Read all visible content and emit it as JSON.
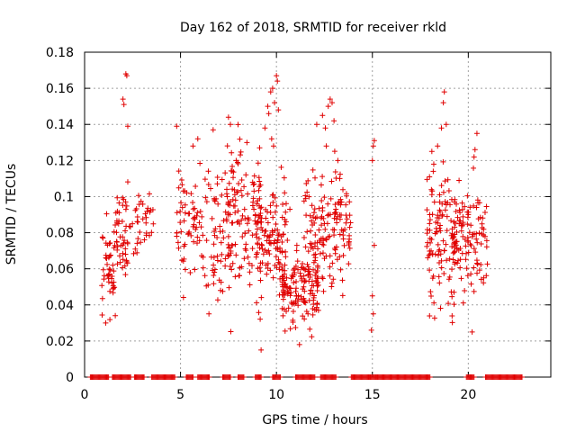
{
  "chart_data": {
    "type": "scatter",
    "title": "Day 162 of 2018, SRMTID for receiver rkld",
    "xlabel": "GPS time / hours",
    "ylabel": "SRMTID / TECUs",
    "xlim": [
      0,
      24.3
    ],
    "ylim": [
      0,
      0.18
    ],
    "xticks": [
      0,
      5,
      10,
      15,
      20
    ],
    "xtick_labels": [
      "0",
      "5",
      "10",
      "15",
      "20"
    ],
    "yticks": [
      0,
      0.02,
      0.04,
      0.06,
      0.08,
      0.1,
      0.12,
      0.14,
      0.16,
      0.18
    ],
    "ytick_labels": [
      "0",
      "0.02",
      "0.04",
      "0.06",
      "0.08",
      "0.1",
      "0.12",
      "0.14",
      "0.16",
      "0.18"
    ],
    "grid": true,
    "marker": "+",
    "color": "#e00000",
    "seed": 162,
    "clusters": [
      {
        "x0": 0.9,
        "x1": 1.6,
        "ymin": 0.028,
        "ymax": 0.095,
        "n": 45
      },
      {
        "x0": 1.6,
        "x1": 2.3,
        "ymin": 0.045,
        "ymax": 0.115,
        "n": 45
      },
      {
        "x0": 2.3,
        "x1": 3.6,
        "ymin": 0.055,
        "ymax": 0.112,
        "n": 35
      },
      {
        "x0": 4.8,
        "x1": 7.5,
        "ymin": 0.03,
        "ymax": 0.135,
        "n": 120
      },
      {
        "x0": 7.4,
        "x1": 9.2,
        "ymin": 0.02,
        "ymax": 0.145,
        "n": 130
      },
      {
        "x0": 9.0,
        "x1": 10.6,
        "ymin": 0.03,
        "ymax": 0.12,
        "n": 110
      },
      {
        "x0": 10.3,
        "x1": 12.2,
        "ymin": 0.018,
        "ymax": 0.08,
        "n": 140
      },
      {
        "x0": 11.4,
        "x1": 13.9,
        "ymin": 0.03,
        "ymax": 0.13,
        "n": 150
      },
      {
        "x0": 17.8,
        "x1": 19.3,
        "ymin": 0.022,
        "ymax": 0.13,
        "n": 110
      },
      {
        "x0": 19.2,
        "x1": 21.0,
        "ymin": 0.035,
        "ymax": 0.12,
        "n": 110
      }
    ],
    "points": [
      [
        1.1,
        0.03
      ],
      [
        1.6,
        0.034
      ],
      [
        2.0,
        0.154
      ],
      [
        2.05,
        0.151
      ],
      [
        2.15,
        0.168
      ],
      [
        2.2,
        0.167
      ],
      [
        2.25,
        0.139
      ],
      [
        4.8,
        0.139
      ],
      [
        5.65,
        0.128
      ],
      [
        5.9,
        0.132
      ],
      [
        6.7,
        0.137
      ],
      [
        7.5,
        0.144
      ],
      [
        7.6,
        0.14
      ],
      [
        7.9,
        0.12
      ],
      [
        9.2,
        0.015
      ],
      [
        9.4,
        0.138
      ],
      [
        9.55,
        0.15
      ],
      [
        9.6,
        0.146
      ],
      [
        9.7,
        0.158
      ],
      [
        9.8,
        0.16
      ],
      [
        9.9,
        0.152
      ],
      [
        10.0,
        0.167
      ],
      [
        10.05,
        0.164
      ],
      [
        10.1,
        0.148
      ],
      [
        9.75,
        0.132
      ],
      [
        9.85,
        0.128
      ],
      [
        10.7,
        0.093
      ],
      [
        11.2,
        0.018
      ],
      [
        12.1,
        0.14
      ],
      [
        12.4,
        0.145
      ],
      [
        12.55,
        0.138
      ],
      [
        12.6,
        0.128
      ],
      [
        12.7,
        0.15
      ],
      [
        12.8,
        0.154
      ],
      [
        12.9,
        0.152
      ],
      [
        13.0,
        0.142
      ],
      [
        13.2,
        0.12
      ],
      [
        13.3,
        0.11
      ],
      [
        13.4,
        0.097
      ],
      [
        15.0,
        0.12
      ],
      [
        15.05,
        0.128
      ],
      [
        15.1,
        0.131
      ],
      [
        15.1,
        0.073
      ],
      [
        15.0,
        0.045
      ],
      [
        15.05,
        0.035
      ],
      [
        14.95,
        0.026
      ],
      [
        18.1,
        0.125
      ],
      [
        18.2,
        0.118
      ],
      [
        18.4,
        0.128
      ],
      [
        18.6,
        0.138
      ],
      [
        18.7,
        0.152
      ],
      [
        18.75,
        0.158
      ],
      [
        18.85,
        0.14
      ],
      [
        20.2,
        0.025
      ],
      [
        20.3,
        0.122
      ],
      [
        20.35,
        0.126
      ],
      [
        20.45,
        0.135
      ],
      [
        20.8,
        0.055
      ],
      [
        14.9,
        0.0
      ],
      [
        15.3,
        0.0
      ],
      [
        16.0,
        0.0
      ]
    ],
    "zero_segments": [
      [
        0.3,
        1.25
      ],
      [
        1.45,
        2.4
      ],
      [
        2.6,
        3.1
      ],
      [
        3.5,
        4.7
      ],
      [
        5.3,
        5.65
      ],
      [
        5.9,
        6.5
      ],
      [
        7.2,
        7.6
      ],
      [
        8.0,
        8.3
      ],
      [
        8.9,
        9.2
      ],
      [
        9.8,
        10.2
      ],
      [
        11.0,
        12.0
      ],
      [
        12.3,
        13.1
      ],
      [
        13.9,
        18.0
      ],
      [
        19.9,
        20.3
      ],
      [
        20.9,
        22.8
      ]
    ]
  }
}
